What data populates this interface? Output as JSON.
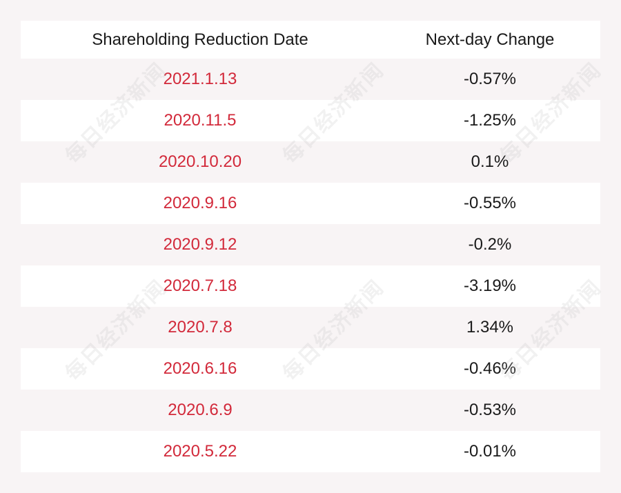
{
  "chart_data": {
    "type": "table",
    "columns": [
      "Shareholding Reduction Date",
      "Next-day Change"
    ],
    "rows": [
      {
        "date": "2021.1.13",
        "change": "-0.57%"
      },
      {
        "date": "2020.11.5",
        "change": "-1.25%"
      },
      {
        "date": "2020.10.20",
        "change": "0.1%"
      },
      {
        "date": "2020.9.16",
        "change": "-0.55%"
      },
      {
        "date": "2020.9.12",
        "change": "-0.2%"
      },
      {
        "date": "2020.7.18",
        "change": "-3.19%"
      },
      {
        "date": "2020.7.8",
        "change": "1.34%"
      },
      {
        "date": "2020.6.16",
        "change": "-0.46%"
      },
      {
        "date": "2020.6.9",
        "change": "-0.53%"
      },
      {
        "date": "2020.5.22",
        "change": "-0.01%"
      }
    ]
  },
  "watermark_text": "每日经济新闻",
  "colors": {
    "date_text": "#d2293a",
    "change_text": "#1a1a1a",
    "row_alt": "#f8f4f5",
    "row_white": "#ffffff"
  }
}
